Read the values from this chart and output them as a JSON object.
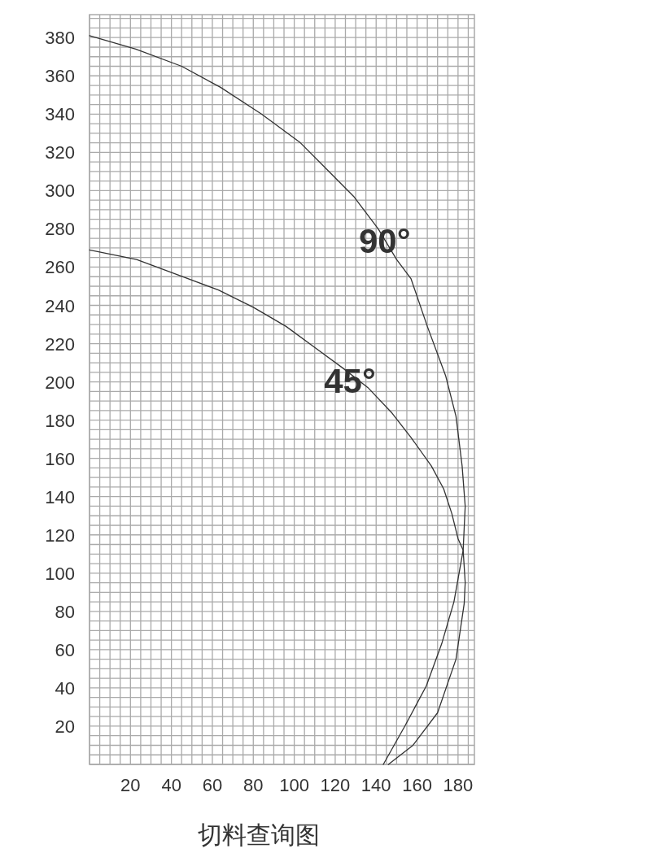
{
  "chart_data": {
    "type": "line",
    "title": "切料查询图",
    "series": [
      {
        "color": "#333333",
        "x": [
          0,
          22.6,
          45,
          64,
          84,
          103,
          116,
          129,
          141,
          150,
          157,
          165,
          174,
          179,
          182,
          183.5,
          182.5,
          178,
          172,
          164.5,
          154,
          143.5
        ],
        "values": [
          381,
          374,
          365,
          354,
          340,
          325,
          311,
          297,
          280,
          264,
          254,
          229,
          203,
          182,
          156,
          135,
          112,
          85,
          63,
          41,
          20,
          0
        ]
      },
      {
        "color": "#333333",
        "x": [
          0,
          23,
          43,
          63,
          80,
          96,
          110,
          124,
          136,
          147.5,
          157,
          167,
          173,
          177,
          180,
          182.5,
          183.5,
          183,
          179,
          170,
          158,
          146
        ],
        "values": [
          269,
          264,
          256,
          248,
          239,
          229,
          218,
          207,
          197,
          184,
          171,
          156,
          144,
          131,
          118,
          112,
          95,
          84,
          55,
          27,
          10,
          0
        ]
      }
    ],
    "xlim": [
      0,
      188
    ],
    "ylim": [
      0,
      392
    ],
    "xticks": [
      20,
      40,
      60,
      80,
      100,
      120,
      140,
      160,
      180
    ],
    "yticks": [
      20,
      40,
      60,
      80,
      100,
      120,
      140,
      160,
      180,
      200,
      220,
      240,
      260,
      280,
      300,
      320,
      340,
      360,
      380
    ],
    "grid": true,
    "marker": "none",
    "line_style": "solid",
    "annotations": [
      {
        "text": "90°",
        "x": 141,
        "y": 280
      },
      {
        "text": "45°",
        "x": 124,
        "y": 207
      }
    ]
  }
}
